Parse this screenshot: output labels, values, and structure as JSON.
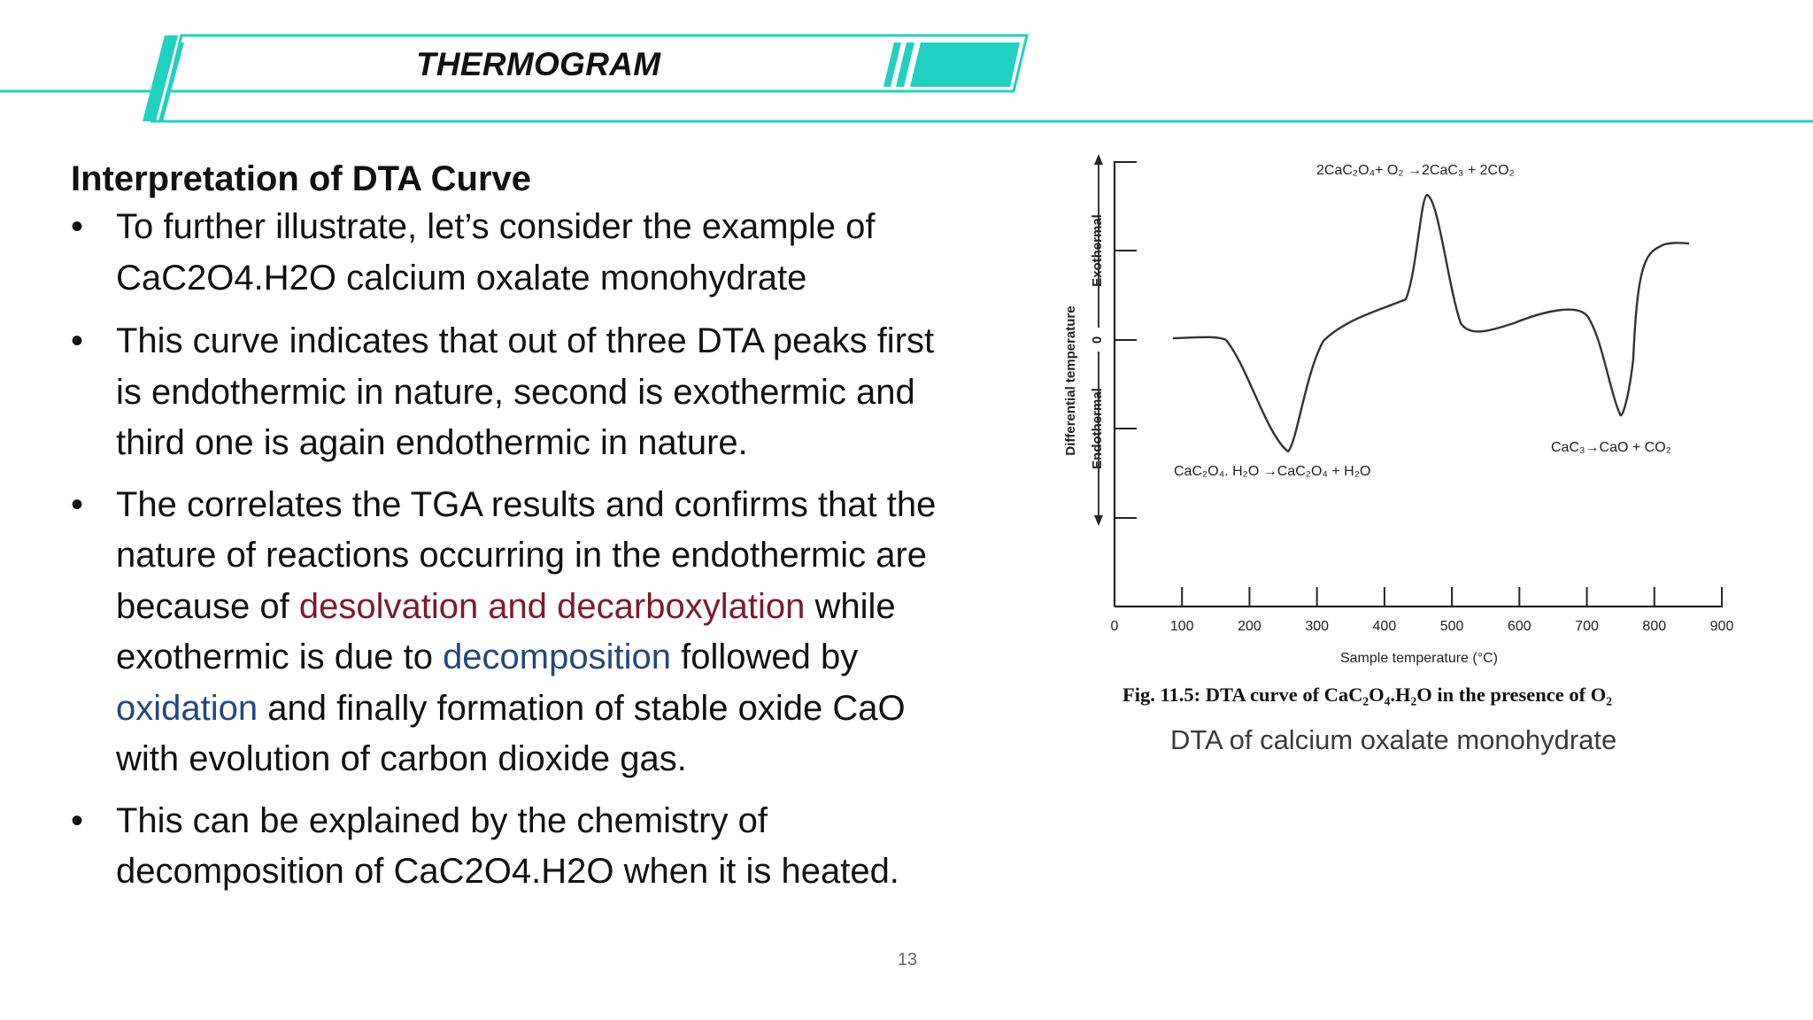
{
  "header": {
    "title": "THERMOGRAM",
    "accent_color": "#20d0c0"
  },
  "content": {
    "heading": "Interpretation of DTA Curve",
    "bullets": [
      {
        "lines": [
          "To further illustrate, let’s consider the example of",
          "CaC2O4.H2O calcium oxalate monohydrate"
        ]
      },
      {
        "lines": [
          "This curve indicates that out of three DTA peaks first",
          "is endothermic in nature, second is exothermic and",
          "third one is again endothermic in nature."
        ]
      },
      {
        "line1": "The correlates the TGA results and confirms that the",
        "line2": "nature of reactions occurring in the endothermic are",
        "line3_a": "because of ",
        "line3_b": "desolvation and decarboxylation",
        "line3_c": " while",
        "line4_a": "exothermic is due to ",
        "line4_b": "decomposition",
        "line4_c": " followed by",
        "line5_a": "oxidation",
        "line5_b": " and finally formation of stable oxide CaO",
        "line6": "with evolution of carbon dioxide gas."
      },
      {
        "lines": [
          "This can be explained by the chemistry of",
          "decomposition of CaC2O4.H2O when it is heated."
        ]
      }
    ],
    "highlight_colors": {
      "red": "#7d1a2b",
      "blue": "#25477e"
    }
  },
  "figure": {
    "caption": "Fig. 11.5:  DTA curve of CaC₂O₄.H₂O in the presence of O₂",
    "subcaption": "DTA of calcium oxalate monohydrate"
  },
  "chart_data": {
    "type": "line",
    "xlabel": "Sample temperature (°C)",
    "ylabel": "Differential temperature",
    "y_zero_label": "0",
    "y_exo_label": "Exothermal",
    "y_endo_label": "Endothermal",
    "xlim": [
      0,
      900
    ],
    "x_ticks": [
      0,
      100,
      200,
      300,
      400,
      500,
      600,
      700,
      800,
      900
    ],
    "x_tick_labels": [
      "0",
      "100",
      "200",
      "300",
      "400",
      "500",
      "600",
      "700",
      "800",
      "900"
    ],
    "grid": false,
    "annotations": [
      {
        "text": "2CaC₂O₄+ O₂ →2CaC₃ + 2CO₂",
        "near": "exothermic peak"
      },
      {
        "text": "CaC₂O₄. H₂O →CaC₂O₄ + H₂O",
        "near": "first endothermic peak"
      },
      {
        "text": "CaC₃→CaO + CO₂",
        "near": "second endothermic peak"
      }
    ]
  },
  "page_number": "13"
}
